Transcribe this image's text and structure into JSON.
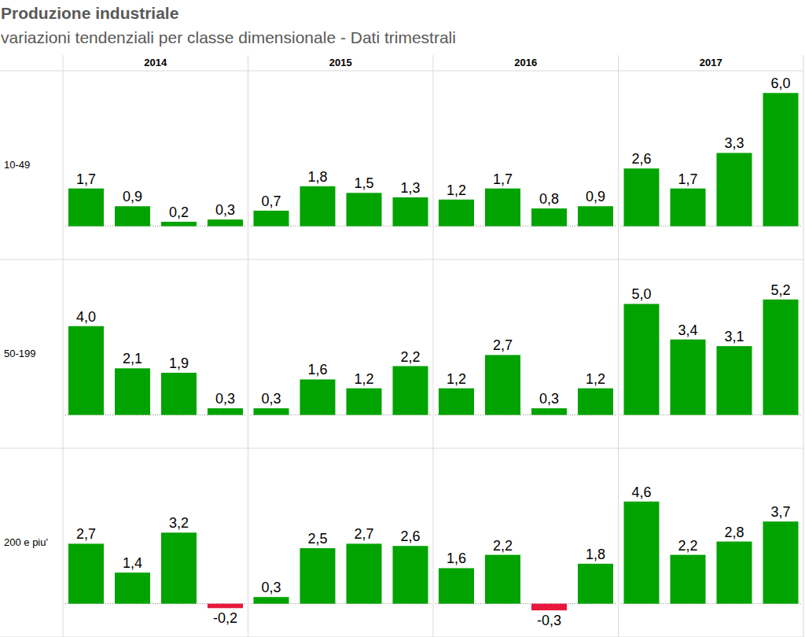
{
  "chart_data": {
    "type": "bar",
    "title": "Produzione industriale",
    "subtitle": "variazioni tendenziali per classe dimensionale - Dati trimestrali",
    "categories": [
      "2014",
      null,
      null,
      null,
      "2015",
      null,
      null,
      null,
      "2016",
      null,
      null,
      null,
      "2017",
      null,
      null,
      null
    ],
    "series": [
      {
        "name": "10-49",
        "values": [
          1.7,
          0.9,
          0.2,
          0.3,
          0.7,
          1.8,
          1.5,
          1.3,
          1.2,
          1.7,
          0.8,
          0.9,
          2.6,
          1.7,
          3.3,
          6.0
        ],
        "value_labels": [
          "1,7",
          "0,9",
          "0,2",
          "0,3",
          "0,7",
          "1,8",
          "1,5",
          "1,3",
          "1,2",
          "1,7",
          "0,8",
          "0,9",
          "2,6",
          "1,7",
          "3,3",
          "6,0"
        ],
        "colors": [
          "#00a300",
          "#00a300",
          "#00a300",
          "#00a300",
          "#00a300",
          "#00a300",
          "#00a300",
          "#00a300",
          "#00a300",
          "#00a300",
          "#00a300",
          "#00a300",
          "#00a300",
          "#00a300",
          "#00a300",
          "#00a300"
        ]
      },
      {
        "name": "50-199",
        "values": [
          4.0,
          2.1,
          1.9,
          0.3,
          0.3,
          1.6,
          1.2,
          2.2,
          1.2,
          2.7,
          0.3,
          1.2,
          5.0,
          3.4,
          3.1,
          5.2
        ],
        "value_labels": [
          "4,0",
          "2,1",
          "1,9",
          "0,3",
          "0,3",
          "1,6",
          "1,2",
          "2,2",
          "1,2",
          "2,7",
          "0,3",
          "1,2",
          "5,0",
          "3,4",
          "3,1",
          "5,2"
        ],
        "colors": [
          "#00a300",
          "#00a300",
          "#00a300",
          "#00a300",
          "#00a300",
          "#00a300",
          "#00a300",
          "#00a300",
          "#00a300",
          "#00a300",
          "#00a300",
          "#00a300",
          "#00a300",
          "#00a300",
          "#00a300",
          "#00a300"
        ]
      },
      {
        "name": "200 e piu'",
        "values": [
          2.7,
          1.4,
          3.2,
          -0.2,
          0.3,
          2.5,
          2.7,
          2.6,
          1.6,
          2.2,
          -0.3,
          1.8,
          4.6,
          2.2,
          2.8,
          3.7
        ],
        "value_labels": [
          "2,7",
          "1,4",
          "3,2",
          "-0,2",
          "0,3",
          "2,5",
          "2,7",
          "2,6",
          "1,6",
          "2,2",
          "-0,3",
          "1,8",
          "4,6",
          "2,2",
          "2,8",
          "3,7"
        ],
        "colors": [
          "#00a300",
          "#00a300",
          "#00a300",
          "#e8173c",
          "#00a300",
          "#00a300",
          "#00a300",
          "#00a300",
          "#00a300",
          "#00a300",
          "#e8173c",
          "#00a300",
          "#00a300",
          "#00a300",
          "#00a300",
          "#00a300"
        ]
      }
    ],
    "ylim": [
      -1.5,
      7
    ],
    "yticks": [
      0
    ],
    "data_labels": true,
    "tick_labels": "x"
  }
}
